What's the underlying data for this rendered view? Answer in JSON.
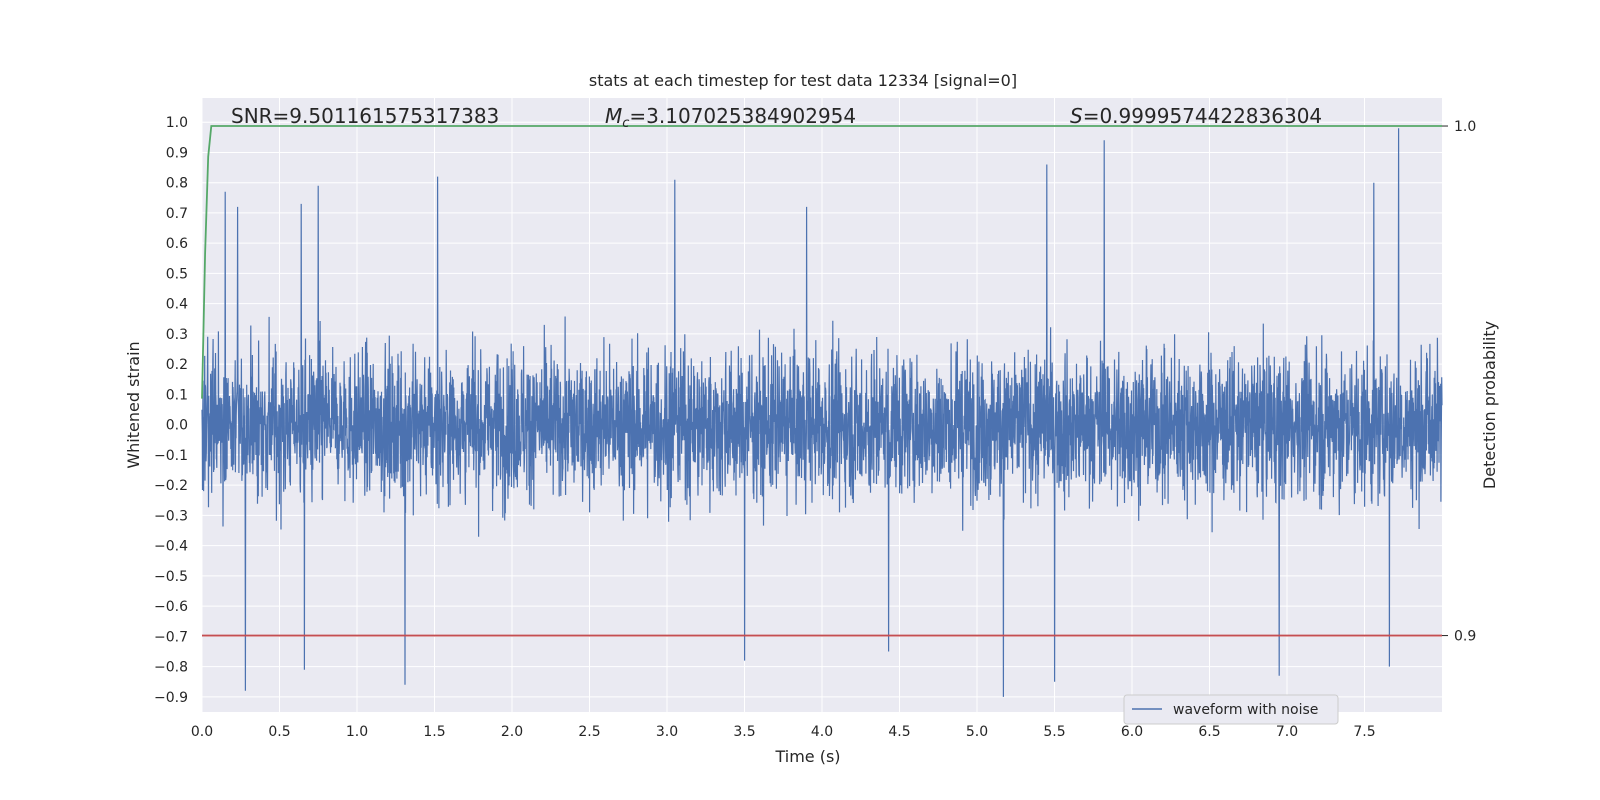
{
  "chart_data": {
    "type": "line",
    "title": "stats at each timestep for test data 12334 [signal=0]",
    "xlabel": "Time (s)",
    "ylabel": "Whitened strain",
    "ylabel_right": "Detection probability",
    "xlim": [
      0.0,
      8.0
    ],
    "ylim": [
      -0.95,
      1.08
    ],
    "ylim_right": [
      0.885,
      1.0055
    ],
    "x_ticks": [
      "0.0",
      "0.5",
      "1.0",
      "1.5",
      "2.0",
      "2.5",
      "3.0",
      "3.5",
      "4.0",
      "4.5",
      "5.0",
      "5.5",
      "6.0",
      "6.5",
      "7.0",
      "7.5"
    ],
    "y_ticks": [
      "1.0",
      "0.9",
      "0.8",
      "0.7",
      "0.6",
      "0.5",
      "0.4",
      "0.3",
      "0.2",
      "0.1",
      "0.0",
      "−0.1",
      "−0.2",
      "−0.3",
      "−0.4",
      "−0.5",
      "−0.6",
      "−0.7",
      "−0.8",
      "−0.9"
    ],
    "y_ticks_right": [
      "1.0",
      "0.9"
    ],
    "grid": true,
    "legend": {
      "position": "lower-right",
      "entries": [
        "waveform with noise"
      ]
    },
    "annotations": {
      "snr": "SNR=9.501161575317383",
      "mc_symbol": "M",
      "mc_sub": "c",
      "mc_value": "=3.107025384902954",
      "s_symbol": "S",
      "s_value": "=0.9999574422836304"
    },
    "colors": {
      "waveform": "#4c72b0",
      "probability": "#55a868",
      "threshold": "#c44e52",
      "plot_bg": "#eaeaf2",
      "grid": "#ffffff"
    },
    "series": [
      {
        "name": "waveform with noise",
        "axis": "left",
        "noise_amplitude_approx": 0.5,
        "peaks": [
          {
            "x": 0.15,
            "y": 0.77
          },
          {
            "x": 0.23,
            "y": 0.72
          },
          {
            "x": 0.64,
            "y": 0.73
          },
          {
            "x": 0.75,
            "y": 0.79
          },
          {
            "x": 1.52,
            "y": 0.82
          },
          {
            "x": 3.05,
            "y": 0.81
          },
          {
            "x": 3.9,
            "y": 0.72
          },
          {
            "x": 5.45,
            "y": 0.86
          },
          {
            "x": 5.82,
            "y": 0.94
          },
          {
            "x": 7.56,
            "y": 0.8
          },
          {
            "x": 7.72,
            "y": 1.0
          },
          {
            "x": 0.28,
            "y": -0.88
          },
          {
            "x": 0.66,
            "y": -0.81
          },
          {
            "x": 1.31,
            "y": -0.86
          },
          {
            "x": 3.5,
            "y": -0.78
          },
          {
            "x": 4.43,
            "y": -0.75
          },
          {
            "x": 5.17,
            "y": -0.9
          },
          {
            "x": 5.5,
            "y": -0.85
          },
          {
            "x": 6.95,
            "y": -0.83
          },
          {
            "x": 7.66,
            "y": -0.8
          }
        ]
      },
      {
        "name": "detection probability",
        "axis": "right",
        "x": [
          0.0,
          0.02,
          0.04,
          0.06,
          0.08,
          8.0
        ],
        "y": [
          0.9465,
          0.975,
          0.994,
          1.0,
          1.0,
          1.0
        ]
      },
      {
        "name": "threshold",
        "axis": "right",
        "x": [
          0.0,
          8.0
        ],
        "y": [
          0.9,
          0.9
        ]
      }
    ]
  }
}
